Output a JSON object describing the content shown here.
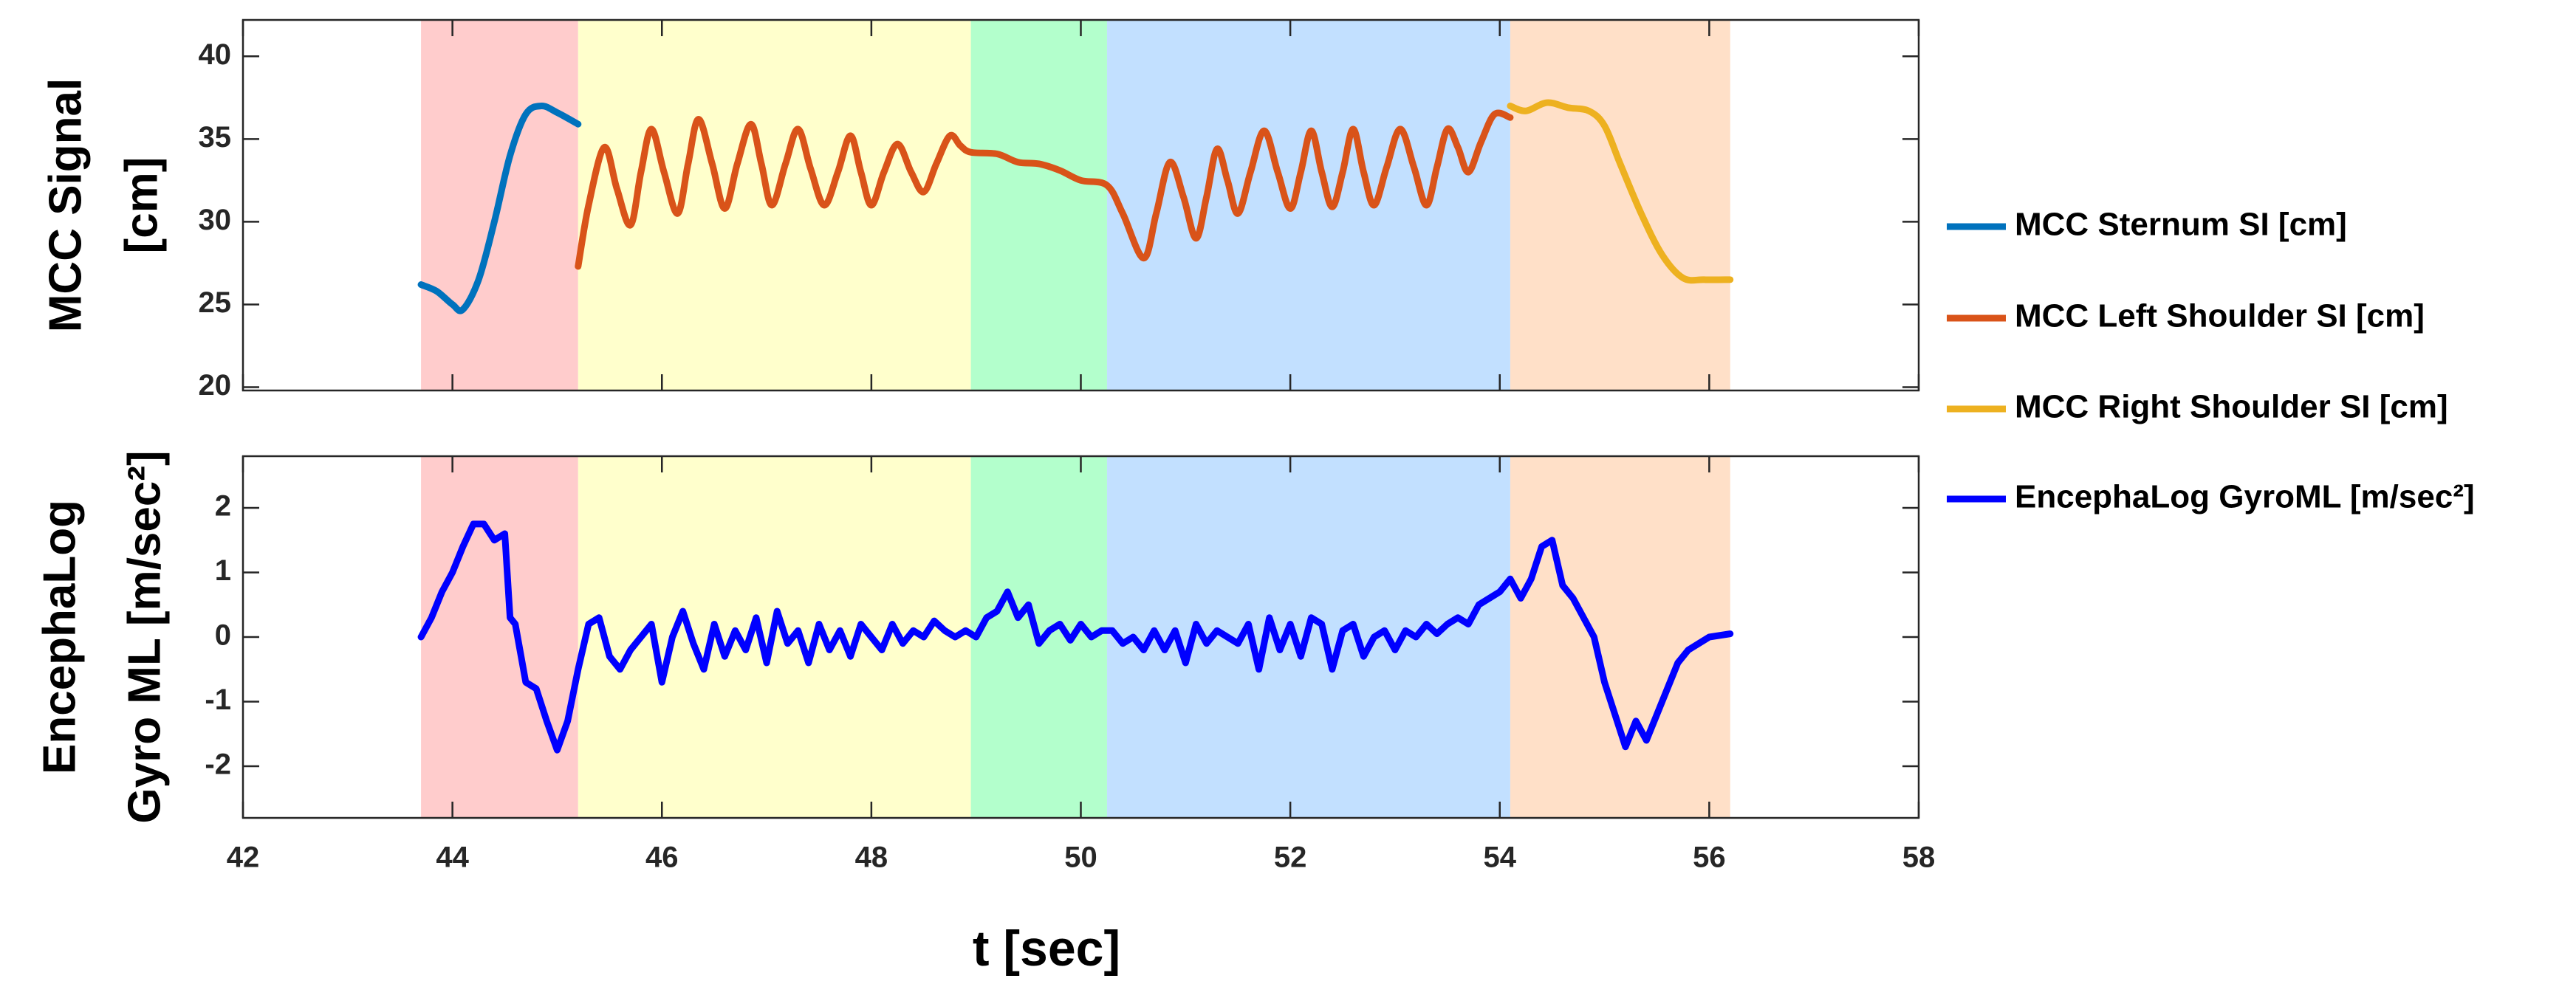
{
  "chart_data": [
    {
      "type": "line",
      "ylabel": [
        "MCC Signal",
        "[cm]"
      ],
      "xlim": [
        42,
        58
      ],
      "xticks": [
        42,
        44,
        46,
        48,
        50,
        52,
        54,
        56,
        58
      ],
      "ylim": [
        19.8,
        42.2
      ],
      "yticks": [
        20,
        25,
        30,
        35,
        40
      ],
      "bands": [
        {
          "x": [
            43.7,
            45.2
          ],
          "color": "#ffcccc"
        },
        {
          "x": [
            45.2,
            48.95
          ],
          "color": "#ffffcc"
        },
        {
          "x": [
            48.95,
            50.25
          ],
          "color": "#b3ffcc"
        },
        {
          "x": [
            50.25,
            54.1
          ],
          "color": "#c2e0ff"
        },
        {
          "x": [
            54.1,
            56.2
          ],
          "color": "#ffe0c8"
        }
      ],
      "series": [
        {
          "name": "MCC Sternum SI [cm]",
          "color": "#0072bd",
          "x": [
            43.7,
            43.85,
            44.0,
            44.1,
            44.25,
            44.4,
            44.55,
            44.7,
            44.85,
            45.0,
            45.2
          ],
          "values": [
            26.2,
            25.8,
            25,
            24.7,
            26.5,
            30,
            34,
            36.5,
            37,
            36.6,
            35.9
          ]
        },
        {
          "name": "MCC Left Shoulder SI [cm]",
          "color": "#d95319",
          "x": [
            45.2,
            45.3,
            45.45,
            45.57,
            45.7,
            45.8,
            45.9,
            46.02,
            46.15,
            46.25,
            46.35,
            46.48,
            46.6,
            46.72,
            46.85,
            46.95,
            47.05,
            47.18,
            47.3,
            47.42,
            47.55,
            47.68,
            47.8,
            47.9,
            48.0,
            48.12,
            48.25,
            48.38,
            48.5,
            48.62,
            48.75,
            48.85,
            48.95,
            49.2,
            49.4,
            49.6,
            49.8,
            50.0,
            50.25,
            50.4,
            50.6,
            50.72,
            50.85,
            50.98,
            51.1,
            51.2,
            51.3,
            51.4,
            51.5,
            51.62,
            51.75,
            51.88,
            52.0,
            52.1,
            52.2,
            52.3,
            52.4,
            52.5,
            52.6,
            52.7,
            52.8,
            52.92,
            53.05,
            53.18,
            53.3,
            53.4,
            53.5,
            53.6,
            53.7,
            53.82,
            53.95,
            54.1
          ],
          "values": [
            27.3,
            31,
            34.5,
            32,
            29.8,
            33,
            35.6,
            33,
            30.5,
            33.5,
            36.2,
            33.5,
            30.8,
            33.5,
            35.9,
            33.5,
            31,
            33.5,
            35.6,
            33.2,
            31,
            33,
            35.2,
            33,
            31,
            33,
            34.7,
            33,
            31.8,
            33.5,
            35.2,
            34.6,
            34.2,
            34.1,
            33.6,
            33.5,
            33.1,
            32.5,
            32.2,
            30.5,
            27.8,
            30.5,
            33.6,
            31.5,
            29,
            31.5,
            34.4,
            32.5,
            30.5,
            33,
            35.5,
            33,
            30.8,
            33,
            35.5,
            33,
            30.9,
            33,
            35.6,
            33,
            31,
            33.3,
            35.6,
            33.3,
            31,
            33.3,
            35.6,
            34.5,
            33,
            34.8,
            36.5,
            36.3
          ]
        },
        {
          "name": "MCC Right Shoulder SI [cm]",
          "color": "#edb120",
          "x": [
            54.1,
            54.25,
            54.45,
            54.65,
            54.85,
            55.0,
            55.15,
            55.35,
            55.55,
            55.75,
            55.95,
            56.2
          ],
          "values": [
            37,
            36.7,
            37.2,
            36.9,
            36.7,
            35.8,
            33.5,
            30.5,
            28,
            26.6,
            26.5,
            26.5
          ]
        }
      ]
    },
    {
      "type": "line",
      "ylabel": [
        "EncephaLog",
        "Gyro ML [m/sec²]"
      ],
      "xlabel": "t [sec]",
      "xlim": [
        42,
        58
      ],
      "xticks": [
        42,
        44,
        46,
        48,
        50,
        52,
        54,
        56,
        58
      ],
      "ylim": [
        -2.8,
        2.8
      ],
      "yticks": [
        -2,
        -1,
        0,
        1,
        2
      ],
      "bands": [
        {
          "x": [
            43.7,
            45.2
          ],
          "color": "#ffcccc"
        },
        {
          "x": [
            45.2,
            48.95
          ],
          "color": "#ffffcc"
        },
        {
          "x": [
            48.95,
            50.25
          ],
          "color": "#b3ffcc"
        },
        {
          "x": [
            50.25,
            54.1
          ],
          "color": "#c2e0ff"
        },
        {
          "x": [
            54.1,
            56.2
          ],
          "color": "#ffe0c8"
        }
      ],
      "series": [
        {
          "name": "EncephaLog GyroML [m/sec²]",
          "color": "#0000ff",
          "x": [
            43.7,
            43.8,
            43.9,
            44.0,
            44.1,
            44.2,
            44.3,
            44.4,
            44.5,
            44.55,
            44.6,
            44.7,
            44.8,
            44.9,
            45.0,
            45.1,
            45.2,
            45.3,
            45.4,
            45.5,
            45.6,
            45.7,
            45.8,
            45.9,
            46.0,
            46.1,
            46.2,
            46.3,
            46.4,
            46.5,
            46.6,
            46.7,
            46.8,
            46.9,
            47.0,
            47.1,
            47.2,
            47.3,
            47.4,
            47.5,
            47.6,
            47.7,
            47.8,
            47.9,
            48.0,
            48.1,
            48.2,
            48.3,
            48.4,
            48.5,
            48.6,
            48.7,
            48.8,
            48.9,
            49.0,
            49.1,
            49.2,
            49.3,
            49.4,
            49.5,
            49.6,
            49.7,
            49.8,
            49.9,
            50.0,
            50.1,
            50.2,
            50.3,
            50.4,
            50.5,
            50.6,
            50.7,
            50.8,
            50.9,
            51.0,
            51.1,
            51.2,
            51.3,
            51.4,
            51.5,
            51.6,
            51.7,
            51.8,
            51.9,
            52.0,
            52.1,
            52.2,
            52.3,
            52.4,
            52.5,
            52.6,
            52.7,
            52.8,
            52.9,
            53.0,
            53.1,
            53.2,
            53.3,
            53.4,
            53.5,
            53.6,
            53.7,
            53.8,
            53.9,
            54.0,
            54.1,
            54.2,
            54.3,
            54.4,
            54.5,
            54.6,
            54.7,
            54.8,
            54.9,
            55.0,
            55.1,
            55.2,
            55.3,
            55.4,
            55.5,
            55.6,
            55.7,
            55.8,
            55.9,
            56.0,
            56.2
          ],
          "values": [
            0,
            0.3,
            0.7,
            1.0,
            1.4,
            1.75,
            1.75,
            1.5,
            1.6,
            0.3,
            0.2,
            -0.7,
            -0.8,
            -1.3,
            -1.75,
            -1.3,
            -0.5,
            0.2,
            0.3,
            -0.3,
            -0.5,
            -0.2,
            0,
            0.2,
            -0.7,
            0,
            0.4,
            -0.1,
            -0.5,
            0.2,
            -0.3,
            0.1,
            -0.2,
            0.3,
            -0.4,
            0.4,
            -0.1,
            0.1,
            -0.4,
            0.2,
            -0.2,
            0.1,
            -0.3,
            0.2,
            0,
            -0.2,
            0.2,
            -0.1,
            0.1,
            0,
            0.25,
            0.1,
            0,
            0.1,
            0,
            0.3,
            0.4,
            0.7,
            0.3,
            0.5,
            -0.1,
            0.1,
            0.2,
            -0.05,
            0.2,
            0,
            0.1,
            0.1,
            -0.1,
            0,
            -0.2,
            0.1,
            -0.2,
            0.1,
            -0.4,
            0.2,
            -0.1,
            0.1,
            0,
            -0.1,
            0.2,
            -0.5,
            0.3,
            -0.2,
            0.2,
            -0.3,
            0.3,
            0.2,
            -0.5,
            0.1,
            0.2,
            -0.3,
            0,
            0.1,
            -0.2,
            0.1,
            0,
            0.2,
            0.05,
            0.2,
            0.3,
            0.2,
            0.5,
            0.6,
            0.7,
            0.9,
            0.6,
            0.9,
            1.4,
            1.5,
            0.8,
            0.6,
            0.3,
            0,
            -0.7,
            -1.2,
            -1.7,
            -1.3,
            -1.6,
            -1.2,
            -0.8,
            -0.4,
            -0.2,
            -0.1,
            0,
            0.05
          ]
        }
      ]
    }
  ]
}
